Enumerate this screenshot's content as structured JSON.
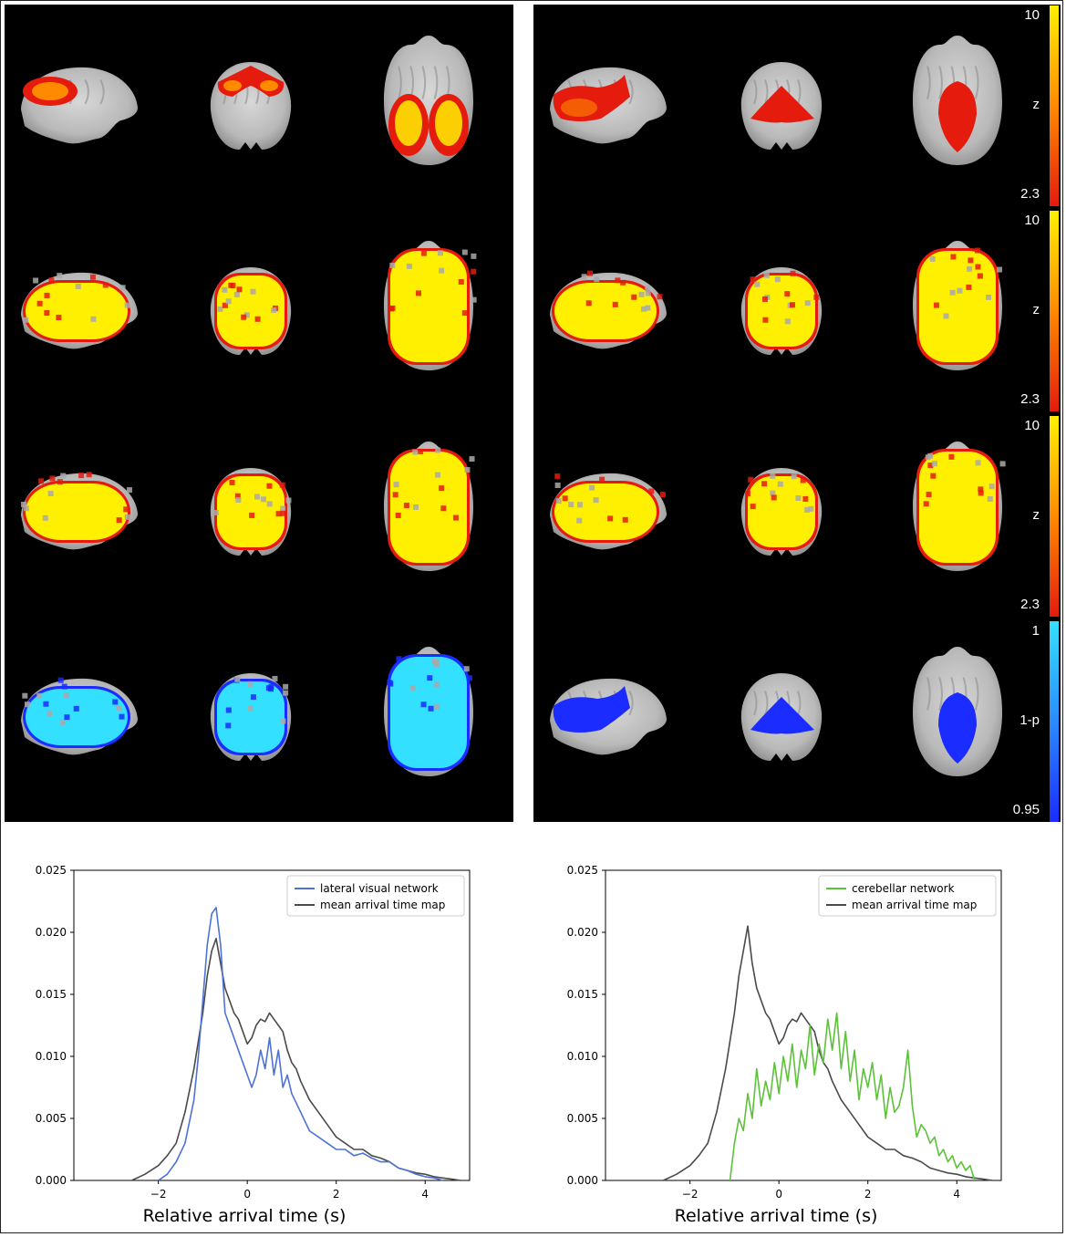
{
  "figure": {
    "rows": [
      {
        "id": "row1",
        "left": {
          "overlay": "hot",
          "intensity": "sparse"
        },
        "right": {
          "overlay": "hot",
          "intensity": "focal-cerebellar"
        }
      },
      {
        "id": "row2",
        "left": {
          "overlay": "hot",
          "intensity": "dense"
        },
        "right": {
          "overlay": "hot",
          "intensity": "dense"
        }
      },
      {
        "id": "row3",
        "left": {
          "overlay": "hot",
          "intensity": "dense"
        },
        "right": {
          "overlay": "hot",
          "intensity": "dense"
        }
      },
      {
        "id": "row4",
        "left": {
          "overlay": "cool",
          "intensity": "dense"
        },
        "right": {
          "overlay": "cool",
          "intensity": "focal-cerebellar"
        }
      }
    ],
    "views": [
      "sagittal",
      "coronal",
      "axial"
    ],
    "colorbars": [
      {
        "type": "hot",
        "max": "10",
        "label": "z",
        "min": "2.3"
      },
      {
        "type": "hot",
        "max": "10",
        "label": "z",
        "min": "2.3"
      },
      {
        "type": "hot",
        "max": "10",
        "label": "z",
        "min": "2.3"
      },
      {
        "type": "cool",
        "max": "1",
        "label": "1-p",
        "min": "0.95"
      }
    ],
    "colors": {
      "hot_low": "#e51b0e",
      "hot_mid": "#ff8a00",
      "hot_high": "#ffef00",
      "cool_low": "#1a2cff",
      "cool_high": "#33e0ff",
      "line_blue": "#4c72d6",
      "line_gray": "#4a4a4a",
      "line_green": "#5cc23a"
    }
  },
  "chart_data": [
    {
      "type": "line",
      "xlabel": "Relative arrival time (s)",
      "ylabel": "",
      "xlim": [
        -3.9,
        5.0
      ],
      "ylim": [
        0,
        0.025
      ],
      "xticks": [
        -2,
        0,
        2,
        4
      ],
      "xtick_labels": [
        "−2",
        "0",
        "2",
        "4"
      ],
      "yticks": [
        0,
        0.005,
        0.01,
        0.015,
        0.02,
        0.025
      ],
      "ytick_labels": [
        "0.000",
        "0.005",
        "0.010",
        "0.015",
        "0.020",
        "0.025"
      ],
      "legend": "top-right",
      "series": [
        {
          "name": "lateral visual network",
          "color": "#4c72d6",
          "x": [
            -2.0,
            -1.8,
            -1.6,
            -1.4,
            -1.2,
            -1.1,
            -1.0,
            -0.9,
            -0.8,
            -0.7,
            -0.6,
            -0.5,
            -0.4,
            -0.3,
            -0.2,
            -0.1,
            0.0,
            0.1,
            0.2,
            0.3,
            0.4,
            0.5,
            0.6,
            0.7,
            0.8,
            0.9,
            1.0,
            1.2,
            1.4,
            1.6,
            1.8,
            2.0,
            2.2,
            2.4,
            2.6,
            2.8,
            3.0,
            3.2,
            3.4,
            3.6,
            3.8,
            4.0,
            4.2,
            4.4
          ],
          "y": [
            0.0,
            0.0005,
            0.0015,
            0.003,
            0.0065,
            0.01,
            0.0145,
            0.019,
            0.0215,
            0.022,
            0.019,
            0.0135,
            0.0125,
            0.0115,
            0.0105,
            0.0095,
            0.0085,
            0.0075,
            0.0085,
            0.0105,
            0.009,
            0.0115,
            0.0085,
            0.0105,
            0.0075,
            0.0085,
            0.007,
            0.0055,
            0.004,
            0.0035,
            0.003,
            0.0025,
            0.0025,
            0.002,
            0.0022,
            0.0018,
            0.0015,
            0.0015,
            0.001,
            0.0008,
            0.0005,
            0.0003,
            0.0002,
            0.0
          ]
        },
        {
          "name": "mean arrival time map",
          "color": "#4a4a4a",
          "x": [
            -2.6,
            -2.3,
            -2.0,
            -1.8,
            -1.6,
            -1.4,
            -1.2,
            -1.0,
            -0.9,
            -0.8,
            -0.7,
            -0.6,
            -0.5,
            -0.4,
            -0.3,
            -0.2,
            -0.1,
            0.0,
            0.1,
            0.2,
            0.3,
            0.4,
            0.5,
            0.6,
            0.7,
            0.8,
            0.9,
            1.0,
            1.1,
            1.2,
            1.4,
            1.6,
            1.8,
            2.0,
            2.2,
            2.4,
            2.6,
            2.8,
            3.0,
            3.2,
            3.4,
            3.6,
            3.8,
            4.0,
            4.2,
            4.4,
            4.6,
            4.8
          ],
          "y": [
            0.0,
            0.0005,
            0.0012,
            0.002,
            0.003,
            0.0055,
            0.009,
            0.0135,
            0.0165,
            0.0185,
            0.0195,
            0.0175,
            0.0155,
            0.0145,
            0.0135,
            0.013,
            0.012,
            0.011,
            0.0115,
            0.0125,
            0.013,
            0.0128,
            0.0135,
            0.013,
            0.0125,
            0.012,
            0.0105,
            0.0095,
            0.009,
            0.008,
            0.0065,
            0.0055,
            0.0045,
            0.0035,
            0.003,
            0.0025,
            0.0025,
            0.002,
            0.0018,
            0.0015,
            0.001,
            0.0008,
            0.0006,
            0.0005,
            0.0003,
            0.0002,
            0.0001,
            0.0
          ]
        }
      ]
    },
    {
      "type": "line",
      "xlabel": "Relative arrival time (s)",
      "ylabel": "",
      "xlim": [
        -3.9,
        5.0
      ],
      "ylim": [
        0,
        0.025
      ],
      "xticks": [
        -2,
        0,
        2,
        4
      ],
      "xtick_labels": [
        "−2",
        "0",
        "2",
        "4"
      ],
      "yticks": [
        0,
        0.005,
        0.01,
        0.015,
        0.02,
        0.025
      ],
      "ytick_labels": [
        "0.000",
        "0.005",
        "0.010",
        "0.015",
        "0.020",
        "0.025"
      ],
      "legend": "top-right",
      "series": [
        {
          "name": "cerebellar network",
          "color": "#5cc23a",
          "x": [
            -1.1,
            -1.0,
            -0.9,
            -0.8,
            -0.7,
            -0.6,
            -0.5,
            -0.4,
            -0.3,
            -0.2,
            -0.1,
            0.0,
            0.1,
            0.2,
            0.3,
            0.4,
            0.5,
            0.6,
            0.7,
            0.8,
            0.9,
            1.0,
            1.1,
            1.2,
            1.3,
            1.4,
            1.5,
            1.6,
            1.7,
            1.8,
            1.9,
            2.0,
            2.1,
            2.2,
            2.3,
            2.4,
            2.5,
            2.6,
            2.7,
            2.8,
            2.9,
            3.0,
            3.1,
            3.2,
            3.3,
            3.4,
            3.5,
            3.6,
            3.7,
            3.8,
            3.9,
            4.0,
            4.1,
            4.2,
            4.3,
            4.4
          ],
          "y": [
            0.0,
            0.003,
            0.005,
            0.004,
            0.007,
            0.005,
            0.009,
            0.006,
            0.008,
            0.0065,
            0.0095,
            0.007,
            0.01,
            0.008,
            0.011,
            0.0075,
            0.0105,
            0.009,
            0.0125,
            0.0085,
            0.011,
            0.0095,
            0.013,
            0.0105,
            0.0135,
            0.009,
            0.012,
            0.008,
            0.0105,
            0.0065,
            0.009,
            0.0075,
            0.0095,
            0.0065,
            0.0085,
            0.005,
            0.0075,
            0.0055,
            0.006,
            0.0075,
            0.0105,
            0.006,
            0.0035,
            0.0045,
            0.004,
            0.003,
            0.0035,
            0.002,
            0.0025,
            0.0015,
            0.002,
            0.001,
            0.0015,
            0.0008,
            0.0012,
            0.0
          ]
        },
        {
          "name": "mean arrival time map",
          "color": "#4a4a4a",
          "x": [
            -2.6,
            -2.3,
            -2.0,
            -1.8,
            -1.6,
            -1.4,
            -1.2,
            -1.0,
            -0.9,
            -0.8,
            -0.7,
            -0.6,
            -0.5,
            -0.4,
            -0.3,
            -0.2,
            -0.1,
            0.0,
            0.1,
            0.2,
            0.3,
            0.4,
            0.5,
            0.6,
            0.7,
            0.8,
            0.9,
            1.0,
            1.1,
            1.2,
            1.4,
            1.6,
            1.8,
            2.0,
            2.2,
            2.4,
            2.6,
            2.8,
            3.0,
            3.2,
            3.4,
            3.6,
            3.8,
            4.0,
            4.2,
            4.4,
            4.6,
            4.8
          ],
          "y": [
            0.0,
            0.0005,
            0.0012,
            0.002,
            0.003,
            0.0055,
            0.009,
            0.0135,
            0.0165,
            0.0185,
            0.0205,
            0.0175,
            0.0155,
            0.0145,
            0.0135,
            0.013,
            0.012,
            0.011,
            0.0115,
            0.0125,
            0.013,
            0.0128,
            0.0135,
            0.013,
            0.0125,
            0.012,
            0.0105,
            0.0095,
            0.009,
            0.008,
            0.0065,
            0.0055,
            0.0045,
            0.0035,
            0.003,
            0.0025,
            0.0025,
            0.002,
            0.0018,
            0.0015,
            0.001,
            0.0008,
            0.0006,
            0.0005,
            0.0003,
            0.0002,
            0.0001,
            0.0
          ]
        }
      ]
    }
  ]
}
